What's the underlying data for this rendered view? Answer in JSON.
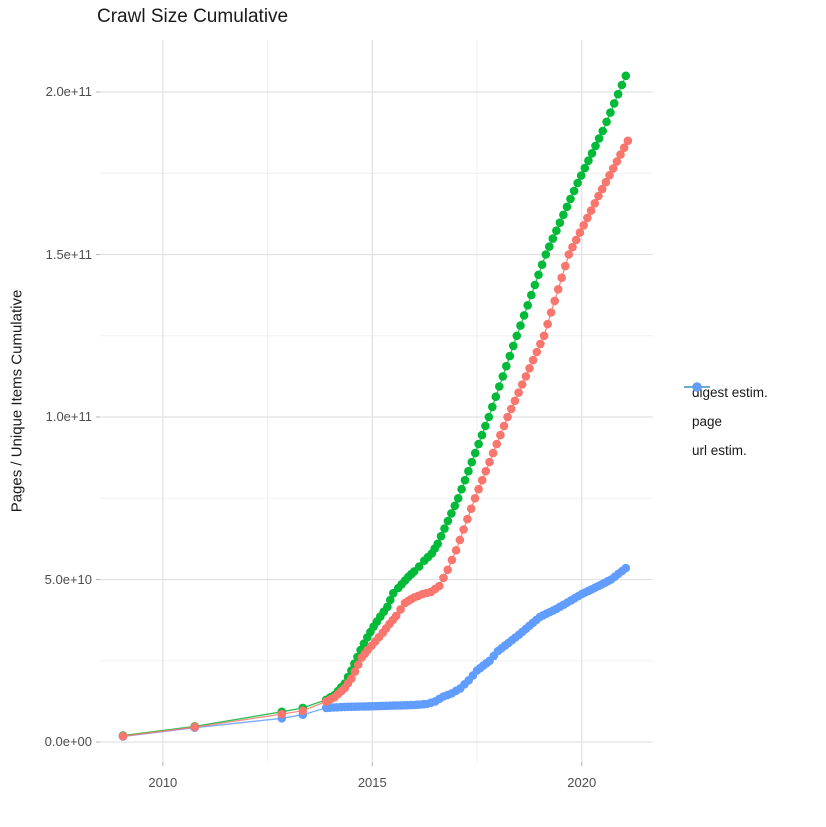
{
  "chart_data": {
    "type": "scatter",
    "title": "Crawl Size Cumulative",
    "xlabel": "",
    "ylabel": "Pages / Unique Items Cumulative",
    "value_unit": "items, stored below in billions (1e9)",
    "x_ticks": [
      {
        "label": "2010",
        "year": 2010
      },
      {
        "label": "2015",
        "year": 2015
      },
      {
        "label": "2020",
        "year": 2020
      }
    ],
    "y_ticks": [
      {
        "label": "0.0e+00",
        "value": 0
      },
      {
        "label": "5.0e+10",
        "value": 50
      },
      {
        "label": "1.0e+11",
        "value": 100
      },
      {
        "label": "1.5e+11",
        "value": 150
      },
      {
        "label": "2.0e+11",
        "value": 200
      }
    ],
    "x_range": [
      2008.5,
      2021.7
    ],
    "y_range_billions": [
      -6.15,
      216
    ],
    "grid": true,
    "legend_position": "right",
    "dense_from_year": 2013.88,
    "point_spacing_years_dense": 0.085,
    "draw_order": [
      2,
      1,
      0
    ],
    "series": [
      {
        "name": "digest estim.",
        "color": "#F8766D",
        "points": [
          [
            2009.05,
            1.8
          ],
          [
            2010.76,
            4.6
          ],
          [
            2012.84,
            8.6
          ],
          [
            2013.34,
            9.6
          ],
          [
            2013.9,
            12.5
          ],
          [
            2014.1,
            13.8
          ],
          [
            2014.34,
            16.6
          ],
          [
            2014.5,
            19.5
          ],
          [
            2014.75,
            26.0
          ],
          [
            2014.89,
            28.3
          ],
          [
            2015.07,
            30.9
          ],
          [
            2015.25,
            33.6
          ],
          [
            2015.41,
            36.3
          ],
          [
            2015.57,
            38.8
          ],
          [
            2015.78,
            42.8
          ],
          [
            2016.0,
            44.5
          ],
          [
            2016.2,
            45.5
          ],
          [
            2016.4,
            46.2
          ],
          [
            2016.6,
            48.0
          ],
          [
            2016.8,
            53.0
          ],
          [
            2017.0,
            59.0
          ],
          [
            2017.45,
            75.0
          ],
          [
            2018.23,
            100.0
          ],
          [
            2019.1,
            125.0
          ],
          [
            2019.69,
            150.0
          ],
          [
            2020.4,
            168.0
          ],
          [
            2021.1,
            185.0
          ]
        ]
      },
      {
        "name": "page",
        "color": "#00BA38",
        "points": [
          [
            2009.05,
            2.0
          ],
          [
            2010.76,
            4.8
          ],
          [
            2012.84,
            9.3
          ],
          [
            2013.34,
            10.5
          ],
          [
            2013.9,
            13.0
          ],
          [
            2014.1,
            14.5
          ],
          [
            2014.34,
            18.0
          ],
          [
            2014.5,
            22.0
          ],
          [
            2014.72,
            28.3
          ],
          [
            2014.88,
            32.2
          ],
          [
            2015.03,
            35.5
          ],
          [
            2015.19,
            38.6
          ],
          [
            2015.36,
            41.6
          ],
          [
            2015.5,
            45.8
          ],
          [
            2015.62,
            47.4
          ],
          [
            2015.86,
            50.8
          ],
          [
            2016.0,
            52.5
          ],
          [
            2016.12,
            54.0
          ],
          [
            2016.24,
            55.8
          ],
          [
            2016.42,
            58.0
          ],
          [
            2016.56,
            61.0
          ],
          [
            2017.05,
            75.0
          ],
          [
            2017.78,
            100.0
          ],
          [
            2018.45,
            125.0
          ],
          [
            2019.14,
            150.0
          ],
          [
            2019.9,
            172.0
          ],
          [
            2020.5,
            188.0
          ],
          [
            2021.05,
            205.0
          ]
        ]
      },
      {
        "name": "url estim.",
        "color": "#619CFF",
        "points": [
          [
            2009.05,
            1.7
          ],
          [
            2010.76,
            4.4
          ],
          [
            2012.84,
            7.3
          ],
          [
            2013.34,
            8.4
          ],
          [
            2013.9,
            10.5
          ],
          [
            2014.34,
            10.8
          ],
          [
            2015.0,
            11.0
          ],
          [
            2015.5,
            11.2
          ],
          [
            2016.0,
            11.4
          ],
          [
            2016.3,
            11.7
          ],
          [
            2016.5,
            12.5
          ],
          [
            2016.7,
            14.0
          ],
          [
            2016.9,
            15.0
          ],
          [
            2017.1,
            16.5
          ],
          [
            2017.3,
            19.0
          ],
          [
            2017.5,
            22.0
          ],
          [
            2017.8,
            25.0
          ],
          [
            2018.0,
            28.0
          ],
          [
            2018.5,
            33.0
          ],
          [
            2019.0,
            38.5
          ],
          [
            2019.4,
            41.0
          ],
          [
            2020.0,
            45.5
          ],
          [
            2020.4,
            48.0
          ],
          [
            2020.7,
            50.0
          ],
          [
            2021.05,
            53.5
          ]
        ]
      }
    ]
  },
  "colors": {
    "background": "#FFFFFF",
    "grid_major": "#E2E2E2",
    "grid_minor": "#F0F0F0",
    "axis_text": "#4D4D4D",
    "title_text": "#1A1A1A",
    "tick_mark": "#B3B3B3"
  }
}
